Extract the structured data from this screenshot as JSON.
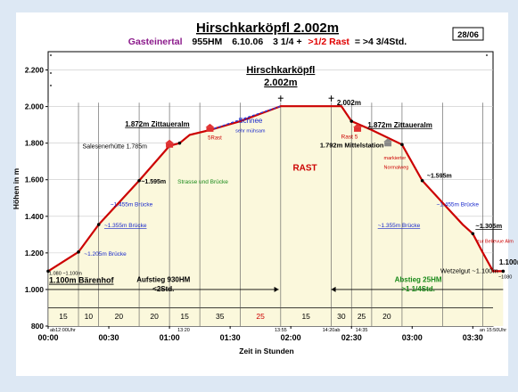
{
  "header": {
    "title": "Hirschkarköpfl 2.002m",
    "sub_area": "Gasteinertal",
    "sub_hm": "955HM",
    "sub_date": "6.10.06",
    "sub_time": "3 1/4 +",
    "sub_rast": ">1/2 Rast",
    "sub_total": "= >4 3/4Std.",
    "badge": "28/06"
  },
  "chart_data": {
    "type": "area",
    "title": "Hirschkarköpfl 2.002m",
    "xlabel": "Zeit in Stunden",
    "ylabel": "Höhen in m",
    "xlim": [
      0,
      220
    ],
    "ylim": [
      800,
      2300
    ],
    "y_ticks": [
      800,
      1000,
      1200,
      1400,
      1600,
      1800,
      2000,
      2200
    ],
    "y_tick_labels": [
      "800",
      "1.000",
      "1.200",
      "1.400",
      "1.600",
      "1.800",
      "2.000",
      "2.200"
    ],
    "x_ticks": [
      0,
      30,
      60,
      90,
      120,
      150,
      180,
      210
    ],
    "x_tick_labels": [
      "00:00",
      "00:30",
      "01:00",
      "01:30",
      "02:00",
      "02:30",
      "03:00",
      "03:30"
    ],
    "series": [
      {
        "x": [
          0,
          15,
          25,
          45,
          60,
          65,
          70,
          80,
          95,
          115,
          140,
          145,
          150,
          160,
          175,
          185,
          205,
          210,
          215,
          220,
          225
        ],
        "y": [
          1100,
          1205,
          1355,
          1595,
          1785,
          1800,
          1845,
          1872,
          1920,
          2002,
          2002,
          2002,
          1920,
          1872,
          1792,
          1595,
          1355,
          1305,
          1200,
          1100,
          1100
        ],
        "color": "#cc0000"
      }
    ],
    "segments": {
      "boundaries": [
        0,
        15,
        25,
        45,
        60,
        75,
        95,
        115,
        140,
        150,
        160,
        175,
        195,
        215
      ],
      "labels": [
        "15",
        "10",
        "20",
        "20",
        "15",
        "35",
        "25",
        "15",
        "30",
        "25",
        "20"
      ],
      "rast_color": "#cc0000"
    },
    "annotations": {
      "peak_title_1": "Hirschkarköpfl",
      "peak_title_2": "2.002m",
      "peak_alt": "2.002m",
      "baerenhof": "1.100m Bärenhof",
      "baerenhof_small": "1.080  ~1.100m",
      "up_1205": "~1.205m Brücke",
      "up_1355": "~1.355m Brücke",
      "up_1455": "~1.455m Brücke",
      "up_1595": "~1.595m",
      "strasse": "Strasse und Brücke",
      "salesen": "Salesenerhütte 1.785m",
      "zitt_up": "1.872m Zittaueralm",
      "rast_small": "5Rast",
      "schnee": "Schnee",
      "muehsam": "sehr mühsam",
      "rast": "RAST",
      "rast5": "Rast 5",
      "zitt_down": "1.872m Zittaueralm",
      "mittel": "1.792m Mittelstation",
      "markiert_1": "markierter",
      "markiert_2": "Normalweg",
      "down_1595": "~1.595m",
      "down_1455": "~1.455m Brücke",
      "down_1355": "~1.355m Brücke",
      "down_1305": "~1.305m",
      "bellevue": "zur Bellevue Alm",
      "wetzel": "Wetzelgut ~1.100m",
      "end_1100": "1.100m",
      "end_1080": "~1080",
      "aufstieg_1": "Aufstieg 930HM",
      "aufstieg_2": "<2Std.",
      "abstieg_1": "Abstieg 25HM",
      "abstieg_2": ">1 1/4Std.",
      "t_start": "ab12:00Uhr",
      "t_1320": "13:20",
      "t_1355": "13:55",
      "t_1420": "14:20ab",
      "t_1435": "14:35",
      "t_end": "an 15:50Uhr"
    }
  }
}
